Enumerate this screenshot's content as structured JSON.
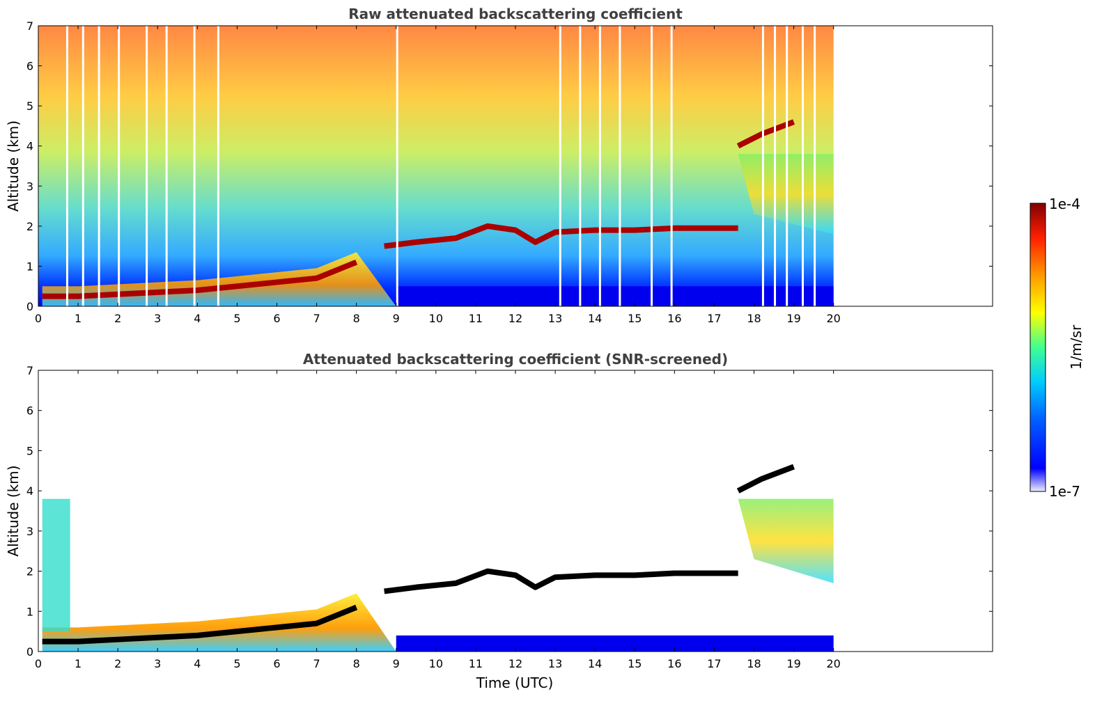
{
  "chart_data": [
    {
      "type": "heatmap",
      "title": "Raw attenuated backscattering coefficient",
      "xlabel": "",
      "ylabel": "Altitude (km)",
      "xlim": [
        0,
        24
      ],
      "ylim": [
        0,
        7
      ],
      "xticks": [
        "0",
        "1",
        "2",
        "3",
        "4",
        "5",
        "6",
        "7",
        "8",
        "9",
        "10",
        "11",
        "12",
        "13",
        "14",
        "15",
        "16",
        "17",
        "18",
        "19",
        "20"
      ],
      "yticks": [
        "0",
        "1",
        "2",
        "3",
        "4",
        "5",
        "6",
        "7"
      ],
      "data_end_hour": 20,
      "layers": [
        {
          "name": "aerosol layer",
          "points": [
            [
              0.1,
              0.25
            ],
            [
              1,
              0.25
            ],
            [
              2,
              0.3
            ],
            [
              3,
              0.35
            ],
            [
              4,
              0.4
            ],
            [
              5,
              0.5
            ],
            [
              6,
              0.6
            ],
            [
              7,
              0.7
            ],
            [
              7.5,
              0.9
            ],
            [
              8,
              1.1
            ]
          ]
        },
        {
          "name": "cloud base",
          "points": [
            [
              8.7,
              1.5
            ],
            [
              9.5,
              1.6
            ],
            [
              10.5,
              1.7
            ],
            [
              11.3,
              2.0
            ],
            [
              12,
              1.9
            ],
            [
              12.5,
              1.6
            ],
            [
              13,
              1.85
            ],
            [
              14,
              1.9
            ],
            [
              15,
              1.9
            ],
            [
              16,
              1.95
            ],
            [
              17,
              1.95
            ],
            [
              17.6,
              1.95
            ]
          ]
        },
        {
          "name": "upper cloud",
          "points": [
            [
              17.6,
              4.0
            ],
            [
              18.2,
              4.3
            ],
            [
              19,
              4.6
            ]
          ]
        }
      ],
      "gaps_hours": [
        0.7,
        1.1,
        1.5,
        2.0,
        2.7,
        3.2,
        3.9,
        4.5,
        9.0,
        13.1,
        13.6,
        14.1,
        14.6,
        15.4,
        15.9,
        18.2,
        18.5,
        18.8,
        19.2,
        19.5
      ]
    },
    {
      "type": "heatmap",
      "title": "Attenuated backscattering coefficient (SNR-screened)",
      "xlabel": "Time (UTC)",
      "ylabel": "Altitude (km)",
      "xlim": [
        0,
        24
      ],
      "ylim": [
        0,
        7
      ],
      "xticks": [
        "0",
        "1",
        "2",
        "3",
        "4",
        "5",
        "6",
        "7",
        "8",
        "9",
        "10",
        "11",
        "12",
        "13",
        "14",
        "15",
        "16",
        "17",
        "18",
        "19",
        "20"
      ],
      "yticks": [
        "0",
        "1",
        "2",
        "3",
        "4",
        "5",
        "6",
        "7"
      ],
      "data_end_hour": 20
    }
  ],
  "colorbar": {
    "max_label": "1e-4",
    "min_label": "1e-7",
    "unit_label": "1/m/sr",
    "colormap": "jet"
  }
}
